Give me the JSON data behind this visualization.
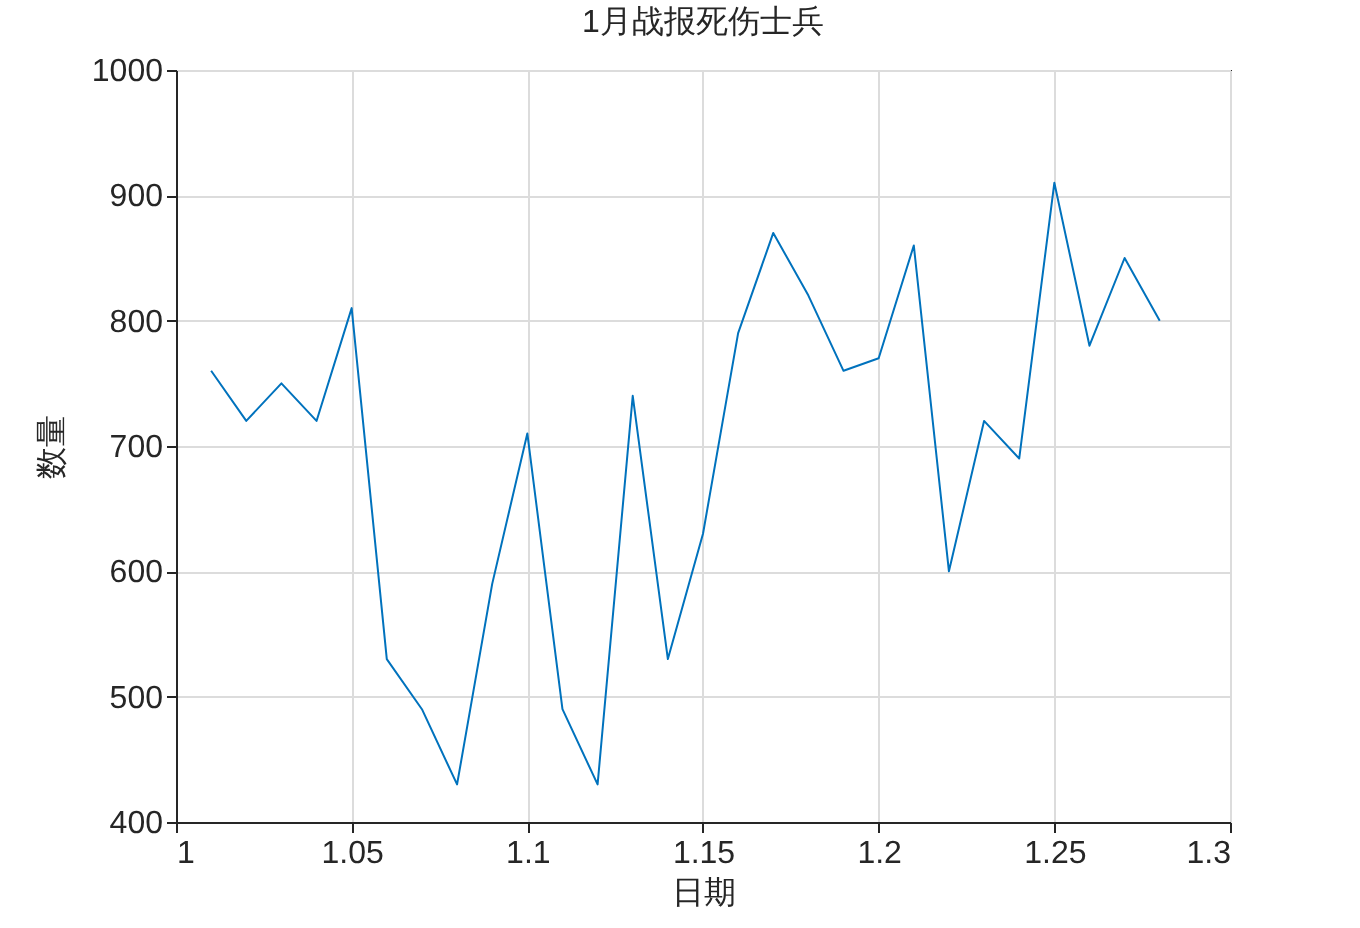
{
  "chart_data": {
    "type": "line",
    "title": "1月战报死伤士兵",
    "xlabel": "日期",
    "ylabel": "数量",
    "x": [
      1.01,
      1.02,
      1.03,
      1.04,
      1.05,
      1.06,
      1.07,
      1.08,
      1.09,
      1.1,
      1.11,
      1.12,
      1.13,
      1.14,
      1.15,
      1.16,
      1.17,
      1.18,
      1.19,
      1.2,
      1.21,
      1.22,
      1.23,
      1.24,
      1.25,
      1.26,
      1.27,
      1.28
    ],
    "series": [
      {
        "color": "#0072bd",
        "values": [
          760,
          720,
          750,
          720,
          810,
          530,
          490,
          430,
          590,
          710,
          490,
          430,
          740,
          530,
          630,
          790,
          870,
          820,
          760,
          770,
          860,
          600,
          720,
          690,
          910,
          780,
          850,
          800
        ]
      }
    ],
    "xlim": [
      1,
      1.3
    ],
    "xticks": [
      1,
      1.05,
      1.1,
      1.15,
      1.2,
      1.25,
      1.3
    ],
    "ylim": [
      400,
      1000
    ],
    "yticks": [
      400,
      500,
      600,
      700,
      800,
      900,
      1000
    ],
    "grid": true
  }
}
